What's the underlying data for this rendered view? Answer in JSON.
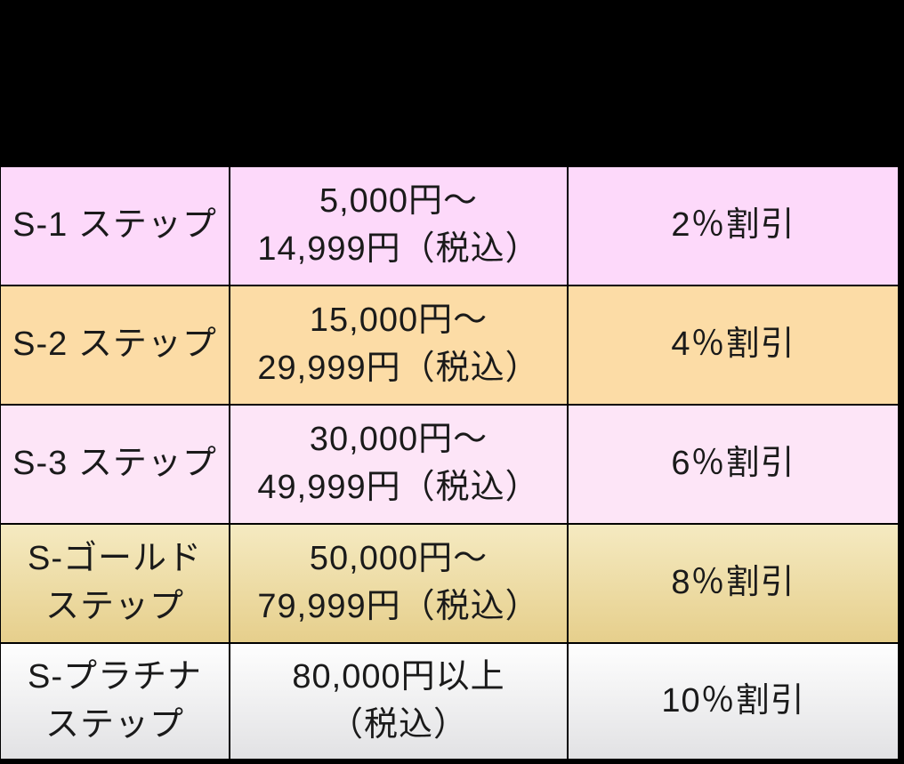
{
  "page": {
    "background_color": "#000000",
    "header_area": {
      "visible_content": ""
    }
  },
  "table": {
    "border_color": "#000000",
    "text_color": "#1a1a1a",
    "columns": [
      "step_name",
      "purchase_amount_range",
      "discount_rate"
    ],
    "rows": [
      {
        "step": "S-1 ステップ",
        "amount": "5,000円〜\n14,999円（税込）",
        "discount": "2％割引",
        "bg_top": "#fdd9fa",
        "bg_bottom": "#fdd9fa"
      },
      {
        "step": "S-2 ステップ",
        "amount": "15,000円〜\n29,999円（税込）",
        "discount": "4％割引",
        "bg_top": "#fcdca6",
        "bg_bottom": "#fcdca6"
      },
      {
        "step": "S-3 ステップ",
        "amount": "30,000円〜\n49,999円（税込）",
        "discount": "6％割引",
        "bg_top": "#fde5f7",
        "bg_bottom": "#fde5f7"
      },
      {
        "step": "S-ゴールド\nステップ",
        "amount": "50,000円〜\n79,999円（税込）",
        "discount": "8％割引",
        "bg_top": "#f5eac1",
        "bg_bottom": "#e6cf8c"
      },
      {
        "step": "S-プラチナ\nステップ",
        "amount": "80,000円以上\n（税込）",
        "discount": "10％割引",
        "bg_top": "#fefefe",
        "bg_bottom": "#e2e2e4"
      }
    ]
  }
}
